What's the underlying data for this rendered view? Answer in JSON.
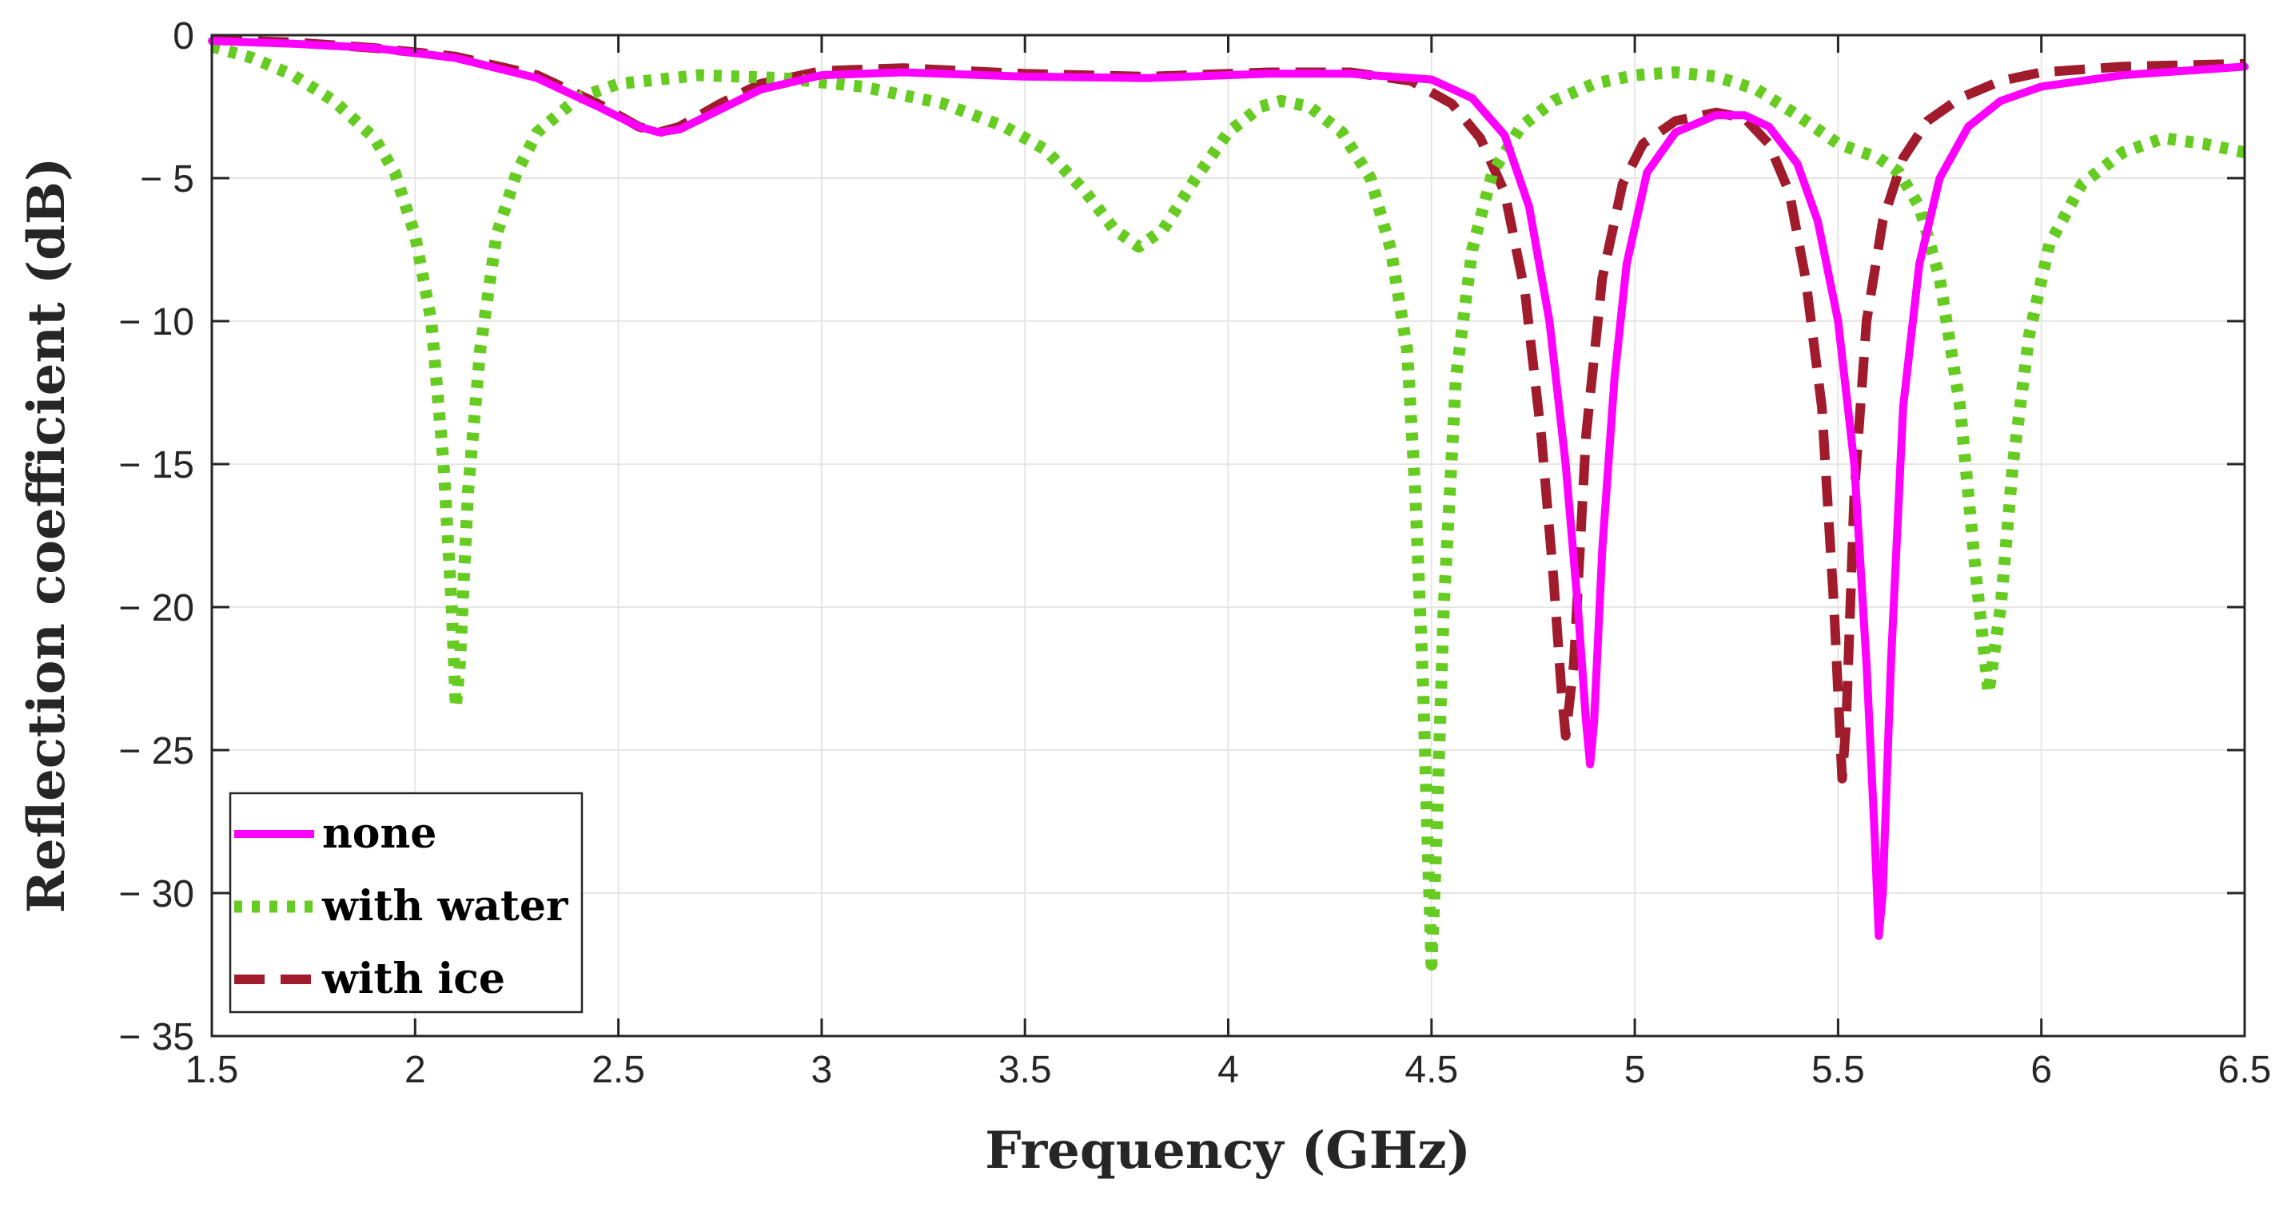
{
  "chart_data": {
    "type": "line",
    "xlabel": "Frequency (GHz)",
    "ylabel": "Reflection coefficient (dB)",
    "xlim": [
      1.5,
      6.5
    ],
    "ylim": [
      -35,
      0
    ],
    "xticks": [
      1.5,
      2,
      2.5,
      3,
      3.5,
      4,
      4.5,
      5,
      5.5,
      6,
      6.5
    ],
    "xtick_labels": [
      "1.5",
      "2",
      "2.5",
      "3",
      "3.5",
      "4",
      "4.5",
      "5",
      "5.5",
      "6",
      "6.5"
    ],
    "yticks": [
      0,
      -5,
      -10,
      -15,
      -20,
      -25,
      -30,
      -35
    ],
    "ytick_labels": [
      "0",
      "− 5",
      "− 10",
      "− 15",
      "− 20",
      "− 25",
      "− 30",
      "− 35"
    ],
    "grid": true,
    "legend_location": "bottom-left",
    "series": [
      {
        "name": "none",
        "color": "#ff00ff",
        "style": "solid",
        "points": [
          [
            1.5,
            -0.2
          ],
          [
            1.7,
            -0.3
          ],
          [
            1.9,
            -0.45
          ],
          [
            2.1,
            -0.8
          ],
          [
            2.3,
            -1.5
          ],
          [
            2.45,
            -2.5
          ],
          [
            2.55,
            -3.2
          ],
          [
            2.6,
            -3.4
          ],
          [
            2.65,
            -3.3
          ],
          [
            2.75,
            -2.6
          ],
          [
            2.85,
            -1.9
          ],
          [
            3.0,
            -1.4
          ],
          [
            3.2,
            -1.3
          ],
          [
            3.5,
            -1.45
          ],
          [
            3.8,
            -1.5
          ],
          [
            4.1,
            -1.35
          ],
          [
            4.3,
            -1.35
          ],
          [
            4.5,
            -1.55
          ],
          [
            4.6,
            -2.2
          ],
          [
            4.68,
            -3.5
          ],
          [
            4.74,
            -6.0
          ],
          [
            4.79,
            -10.0
          ],
          [
            4.83,
            -15.0
          ],
          [
            4.86,
            -20.0
          ],
          [
            4.88,
            -24.0
          ],
          [
            4.89,
            -25.5
          ],
          [
            4.9,
            -24.0
          ],
          [
            4.92,
            -18.0
          ],
          [
            4.95,
            -12.0
          ],
          [
            4.98,
            -8.0
          ],
          [
            5.03,
            -4.8
          ],
          [
            5.1,
            -3.4
          ],
          [
            5.2,
            -2.8
          ],
          [
            5.27,
            -2.8
          ],
          [
            5.33,
            -3.2
          ],
          [
            5.4,
            -4.5
          ],
          [
            5.45,
            -6.5
          ],
          [
            5.5,
            -10.0
          ],
          [
            5.54,
            -15.0
          ],
          [
            5.57,
            -22.0
          ],
          [
            5.59,
            -28.0
          ],
          [
            5.6,
            -31.5
          ],
          [
            5.61,
            -30.0
          ],
          [
            5.63,
            -22.0
          ],
          [
            5.66,
            -13.0
          ],
          [
            5.7,
            -8.0
          ],
          [
            5.75,
            -5.0
          ],
          [
            5.82,
            -3.2
          ],
          [
            5.9,
            -2.3
          ],
          [
            6.0,
            -1.8
          ],
          [
            6.2,
            -1.4
          ],
          [
            6.5,
            -1.1
          ]
        ]
      },
      {
        "name": "with water",
        "color": "#66cc22",
        "style": "dotted",
        "points": [
          [
            1.5,
            -0.4
          ],
          [
            1.6,
            -0.8
          ],
          [
            1.7,
            -1.4
          ],
          [
            1.8,
            -2.3
          ],
          [
            1.9,
            -3.6
          ],
          [
            1.95,
            -4.8
          ],
          [
            2.0,
            -7.0
          ],
          [
            2.04,
            -10.0
          ],
          [
            2.07,
            -15.0
          ],
          [
            2.09,
            -20.0
          ],
          [
            2.1,
            -23.5
          ],
          [
            2.11,
            -22.0
          ],
          [
            2.13,
            -16.0
          ],
          [
            2.16,
            -11.0
          ],
          [
            2.2,
            -7.0
          ],
          [
            2.25,
            -4.8
          ],
          [
            2.3,
            -3.4
          ],
          [
            2.4,
            -2.2
          ],
          [
            2.5,
            -1.7
          ],
          [
            2.7,
            -1.4
          ],
          [
            2.9,
            -1.5
          ],
          [
            3.1,
            -1.8
          ],
          [
            3.3,
            -2.4
          ],
          [
            3.45,
            -3.2
          ],
          [
            3.55,
            -4.0
          ],
          [
            3.65,
            -5.5
          ],
          [
            3.72,
            -6.8
          ],
          [
            3.78,
            -7.4
          ],
          [
            3.84,
            -6.8
          ],
          [
            3.92,
            -5.0
          ],
          [
            4.0,
            -3.4
          ],
          [
            4.08,
            -2.5
          ],
          [
            4.13,
            -2.3
          ],
          [
            4.2,
            -2.5
          ],
          [
            4.28,
            -3.4
          ],
          [
            4.35,
            -5.0
          ],
          [
            4.4,
            -7.5
          ],
          [
            4.44,
            -11.0
          ],
          [
            4.46,
            -16.0
          ],
          [
            4.48,
            -23.0
          ],
          [
            4.49,
            -28.0
          ],
          [
            4.5,
            -32.5
          ],
          [
            4.51,
            -29.0
          ],
          [
            4.53,
            -20.0
          ],
          [
            4.56,
            -12.0
          ],
          [
            4.6,
            -7.5
          ],
          [
            4.65,
            -4.8
          ],
          [
            4.72,
            -3.2
          ],
          [
            4.8,
            -2.3
          ],
          [
            4.9,
            -1.7
          ],
          [
            5.0,
            -1.4
          ],
          [
            5.1,
            -1.3
          ],
          [
            5.2,
            -1.45
          ],
          [
            5.3,
            -1.9
          ],
          [
            5.4,
            -2.8
          ],
          [
            5.5,
            -3.8
          ],
          [
            5.6,
            -4.3
          ],
          [
            5.65,
            -4.8
          ],
          [
            5.7,
            -6.0
          ],
          [
            5.75,
            -8.5
          ],
          [
            5.8,
            -13.0
          ],
          [
            5.84,
            -19.0
          ],
          [
            5.87,
            -23.0
          ],
          [
            5.9,
            -20.0
          ],
          [
            5.93,
            -15.0
          ],
          [
            5.97,
            -10.5
          ],
          [
            6.02,
            -7.3
          ],
          [
            6.1,
            -5.2
          ],
          [
            6.2,
            -4.1
          ],
          [
            6.3,
            -3.6
          ],
          [
            6.4,
            -3.8
          ],
          [
            6.5,
            -4.1
          ]
        ]
      },
      {
        "name": "with ice",
        "color": "#a01c2c",
        "style": "dashed",
        "points": [
          [
            1.5,
            -0.15
          ],
          [
            1.7,
            -0.25
          ],
          [
            1.9,
            -0.45
          ],
          [
            2.1,
            -0.75
          ],
          [
            2.3,
            -1.4
          ],
          [
            2.45,
            -2.4
          ],
          [
            2.55,
            -3.2
          ],
          [
            2.6,
            -3.4
          ],
          [
            2.65,
            -3.2
          ],
          [
            2.75,
            -2.4
          ],
          [
            2.85,
            -1.7
          ],
          [
            3.0,
            -1.25
          ],
          [
            3.2,
            -1.15
          ],
          [
            3.5,
            -1.35
          ],
          [
            3.8,
            -1.45
          ],
          [
            4.1,
            -1.3
          ],
          [
            4.3,
            -1.3
          ],
          [
            4.45,
            -1.6
          ],
          [
            4.55,
            -2.4
          ],
          [
            4.62,
            -3.6
          ],
          [
            4.68,
            -5.5
          ],
          [
            4.73,
            -9.0
          ],
          [
            4.77,
            -14.0
          ],
          [
            4.8,
            -19.0
          ],
          [
            4.82,
            -23.0
          ],
          [
            4.83,
            -24.5
          ],
          [
            4.85,
            -22.0
          ],
          [
            4.88,
            -14.0
          ],
          [
            4.92,
            -8.5
          ],
          [
            4.97,
            -5.2
          ],
          [
            5.02,
            -3.8
          ],
          [
            5.1,
            -3.0
          ],
          [
            5.2,
            -2.7
          ],
          [
            5.27,
            -2.9
          ],
          [
            5.33,
            -3.8
          ],
          [
            5.38,
            -5.5
          ],
          [
            5.42,
            -8.5
          ],
          [
            5.46,
            -13.0
          ],
          [
            5.49,
            -20.0
          ],
          [
            5.51,
            -26.0
          ],
          [
            5.52,
            -24.0
          ],
          [
            5.54,
            -16.0
          ],
          [
            5.57,
            -10.0
          ],
          [
            5.61,
            -6.5
          ],
          [
            5.66,
            -4.3
          ],
          [
            5.72,
            -3.0
          ],
          [
            5.8,
            -2.2
          ],
          [
            5.9,
            -1.6
          ],
          [
            6.0,
            -1.3
          ],
          [
            6.2,
            -1.1
          ],
          [
            6.5,
            -1.0
          ]
        ]
      }
    ]
  }
}
